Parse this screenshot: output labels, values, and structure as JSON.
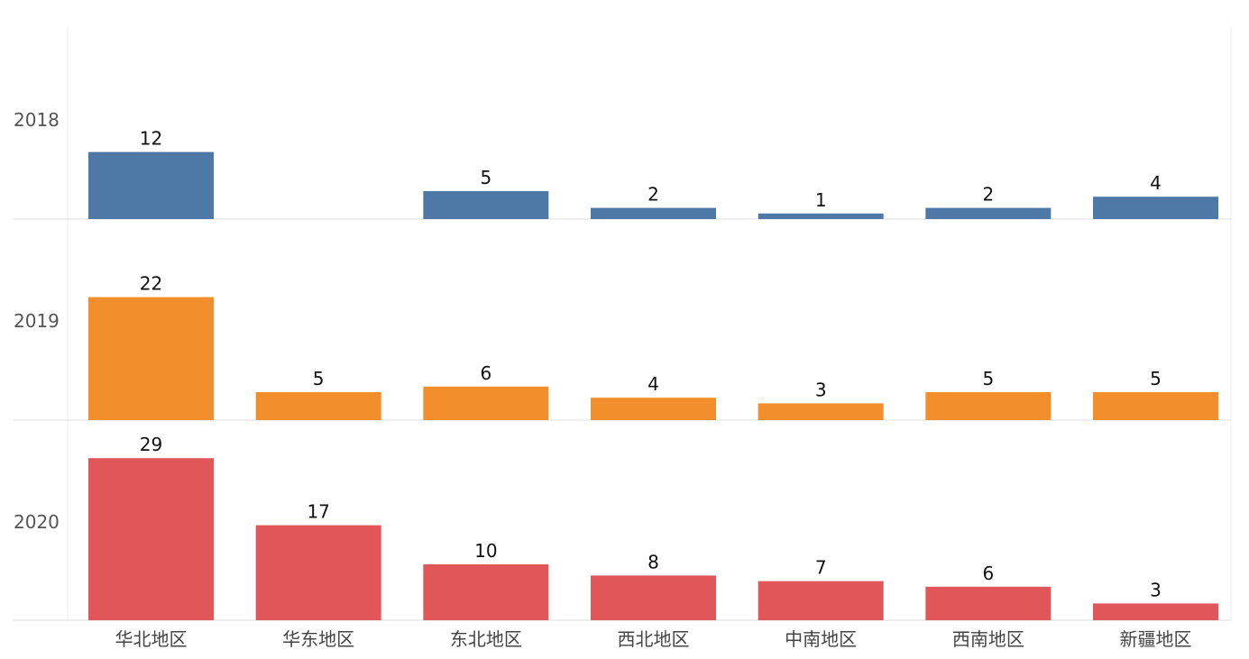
{
  "chart_data": {
    "type": "bar",
    "layout": "small-multiples by year",
    "categories": [
      "华北地区",
      "华东地区",
      "东北地区",
      "西北地区",
      "中南地区",
      "西南地区",
      "新疆地区"
    ],
    "series": [
      {
        "name": "2018",
        "color": "#4e79a7",
        "values": [
          12,
          null,
          5,
          2,
          1,
          2,
          4
        ]
      },
      {
        "name": "2019",
        "color": "#f28e2b",
        "values": [
          22,
          5,
          6,
          4,
          3,
          5,
          5
        ]
      },
      {
        "name": "2020",
        "color": "#e15759",
        "values": [
          29,
          17,
          10,
          8,
          7,
          6,
          3
        ]
      }
    ],
    "ylim": [
      0,
      35
    ],
    "grid": false,
    "data_labels": true
  }
}
